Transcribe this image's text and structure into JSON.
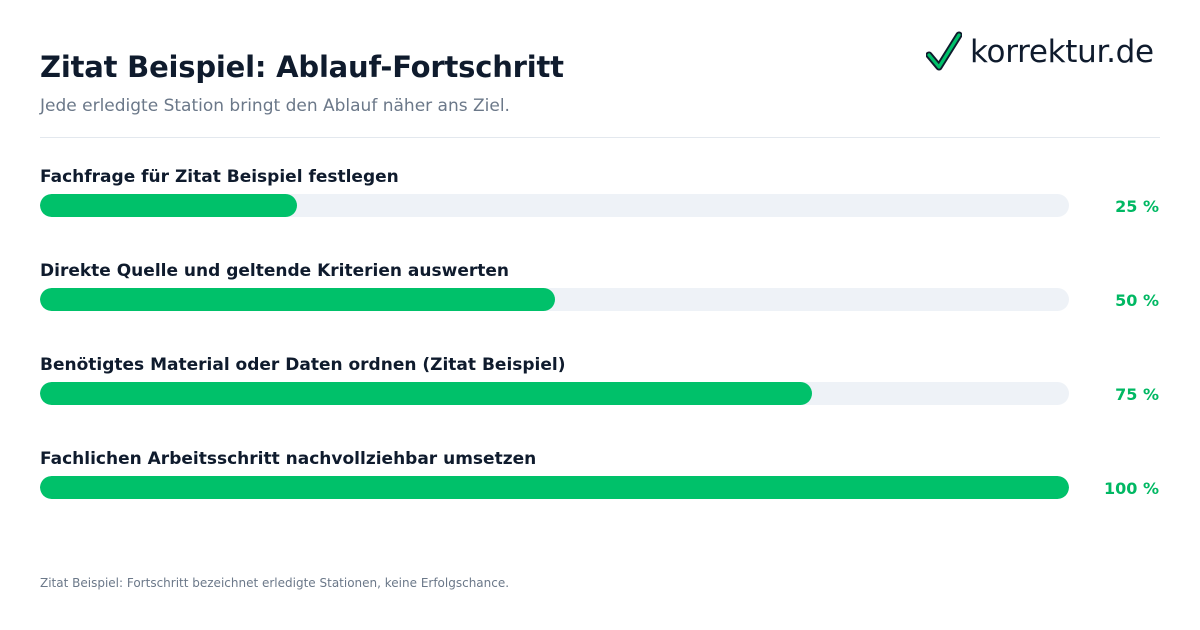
{
  "header": {
    "title": "Zitat Beispiel: Ablauf-Fortschritt",
    "subtitle": "Jede erledigte Station bringt den Ablauf näher ans Ziel."
  },
  "logo": {
    "text": "korrektur.de",
    "icon": "checkmark-icon",
    "check_color": "#00c16a"
  },
  "colors": {
    "accent": "#00c16a",
    "track": "#eef2f7",
    "percent_text": "#00b863"
  },
  "chart_data": {
    "type": "bar",
    "orientation": "horizontal",
    "categories": [
      "Fachfrage für Zitat Beispiel festlegen",
      "Direkte Quelle und geltende Kriterien auswerten",
      "Benötigtes Material oder Daten ordnen (Zitat Beispiel)",
      "Fachlichen Arbeitsschritt nachvollziehbar umsetzen"
    ],
    "values": [
      25,
      50,
      75,
      100
    ],
    "labels": [
      "25 %",
      "50 %",
      "75 %",
      "100 %"
    ],
    "xlim": [
      0,
      100
    ],
    "grid": false,
    "legend": "none"
  },
  "footnote": "Zitat Beispiel: Fortschritt bezeichnet erledigte Stationen, keine Erfolgschance."
}
